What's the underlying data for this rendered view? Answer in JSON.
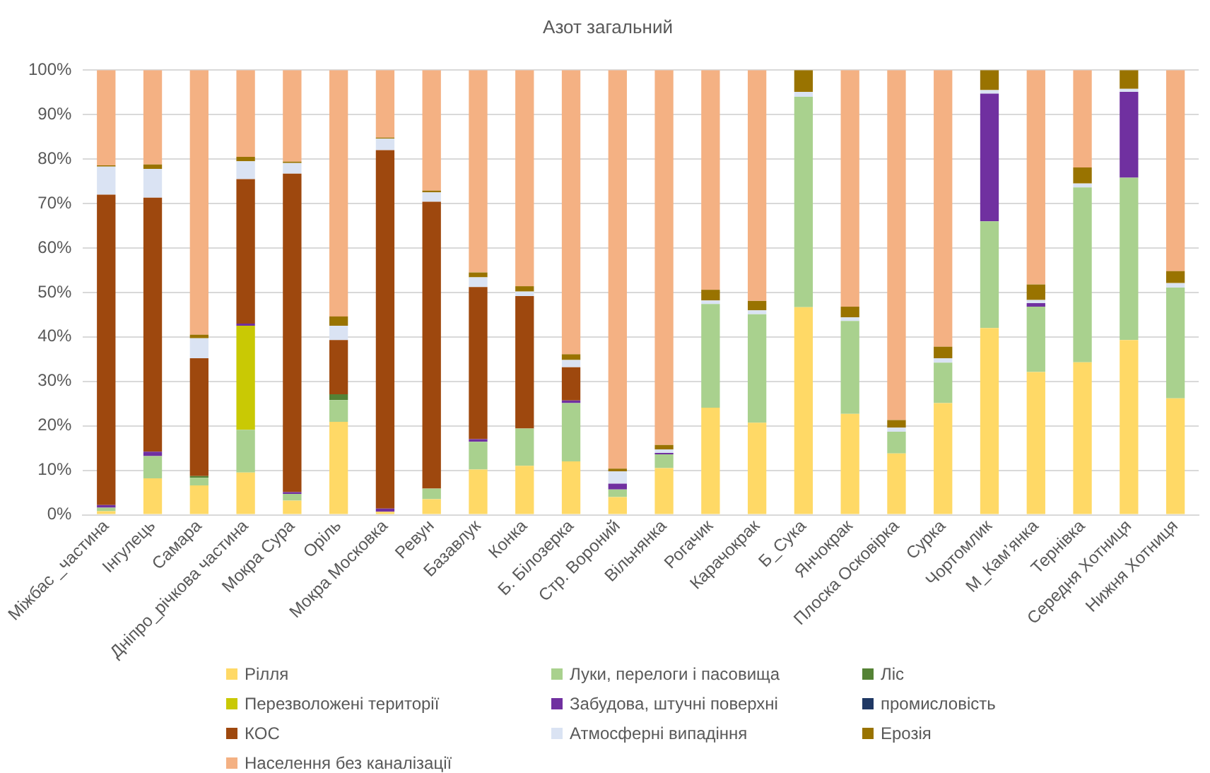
{
  "chart_data": {
    "type": "bar",
    "title": "Азот загальний",
    "stacked": true,
    "grid": "y",
    "legend": "bottom",
    "categories": [
      "Міжбас _частина",
      "Інгулець",
      "Самара",
      "Дніпро_річкова частина",
      "Мокра Сура",
      "Оріль",
      "Мокра Московка",
      "Ревун",
      "Базавлук",
      "Конка",
      "Б. Білозерка",
      "Стр. Вороний",
      "Вільнянка",
      "Рогачик",
      "Карачокрак",
      "Б_Сука",
      "Янчокрак",
      "Плоска Осковірка",
      "Сурка",
      "Чортомлик",
      "М_Кам’янка",
      "Тернівка",
      "Середня Хотниця",
      "Нижня Хотниця"
    ],
    "ylim": [
      0,
      100
    ],
    "yticks": [
      {
        "value": 0,
        "label": "0%"
      },
      {
        "value": 10,
        "label": "10%"
      },
      {
        "value": 20,
        "label": "20%"
      },
      {
        "value": 30,
        "label": "30%"
      },
      {
        "value": 40,
        "label": "40%"
      },
      {
        "value": 50,
        "label": "50%"
      },
      {
        "value": 60,
        "label": "60%"
      },
      {
        "value": 70,
        "label": "70%"
      },
      {
        "value": 80,
        "label": "80%"
      },
      {
        "value": 90,
        "label": "90%"
      },
      {
        "value": 100,
        "label": "100%"
      }
    ],
    "series": [
      {
        "name": "Рілля",
        "color": "#ffd966",
        "values": [
          0.8,
          8.2,
          6.6,
          9.5,
          3.2,
          20.9,
          0.7,
          3.5,
          10.2,
          11.0,
          12.0,
          4.0,
          10.5,
          24.1,
          20.7,
          46.7,
          22.7,
          13.8,
          25.1,
          42.0,
          32.1,
          34.3,
          39.3,
          26.2
        ]
      },
      {
        "name": "Луки, перелоги і пасовища",
        "color": "#a9d18e",
        "values": [
          0.8,
          5.0,
          1.7,
          9.6,
          1.5,
          4.9,
          0,
          2.4,
          6.2,
          8.4,
          13.1,
          1.7,
          3.1,
          23.3,
          24.4,
          47.3,
          20.9,
          4.9,
          9.1,
          24.0,
          14.7,
          39.3,
          36.5,
          24.9
        ]
      },
      {
        "name": "Ліс",
        "color": "#548235",
        "values": [
          0,
          0,
          0.4,
          0,
          0,
          1.3,
          0,
          0,
          0,
          0,
          0,
          0,
          0,
          0,
          0,
          0,
          0,
          0,
          0,
          0,
          0,
          0,
          0,
          0
        ]
      },
      {
        "name": "Перезволожені території",
        "color": "#c9c904",
        "values": [
          0,
          0,
          0,
          23.4,
          0,
          0,
          0,
          0,
          0,
          0,
          0,
          0,
          0,
          0,
          0,
          0,
          0,
          0,
          0,
          0,
          0,
          0,
          0,
          0
        ]
      },
      {
        "name": "Забудова, штучні поверхні",
        "color": "#7030a0",
        "values": [
          0.6,
          1.0,
          0,
          0.5,
          0.4,
          0,
          0.7,
          0,
          0.6,
          0,
          0.6,
          1.3,
          0.3,
          0,
          0,
          0,
          0,
          0,
          0,
          28.7,
          0.8,
          0,
          19.3,
          0
        ]
      },
      {
        "name": "промисловість",
        "color": "#1f3864",
        "values": [
          0,
          0,
          0,
          0,
          0,
          0,
          0,
          0,
          0,
          0,
          0,
          0,
          0,
          0,
          0,
          0,
          0,
          0,
          0,
          0,
          0,
          0,
          0,
          0
        ]
      },
      {
        "name": "КОС",
        "color": "#9e480e",
        "values": [
          69.8,
          57.1,
          26.5,
          32.5,
          71.6,
          12.2,
          80.6,
          64.5,
          34.2,
          29.8,
          7.5,
          0,
          0,
          0,
          0,
          0,
          0,
          0,
          0,
          0,
          0,
          0,
          0,
          0
        ]
      },
      {
        "name": "Атмосферні випадіння",
        "color": "#dae3f3",
        "values": [
          6.3,
          6.5,
          4.5,
          4.0,
          2.4,
          3.2,
          2.6,
          2.1,
          2.2,
          1.0,
          1.6,
          2.8,
          0.8,
          0.8,
          0.9,
          1.1,
          0.8,
          0.9,
          1.0,
          0.8,
          0.7,
          0.9,
          0.7,
          1.0
        ]
      },
      {
        "name": "Ерозія",
        "color": "#997300",
        "values": [
          0.3,
          1.0,
          0.8,
          1.0,
          0.3,
          2.1,
          0.2,
          0.4,
          1.1,
          1.2,
          1.3,
          0.6,
          1.0,
          2.4,
          2.1,
          4.9,
          2.4,
          1.7,
          2.6,
          4.5,
          3.5,
          3.6,
          4.2,
          2.7
        ]
      },
      {
        "name": "Населення без каналізації",
        "color": "#f4b183",
        "values": [
          21.4,
          21.2,
          59.5,
          19.5,
          20.6,
          55.4,
          15.2,
          27.1,
          45.5,
          48.6,
          63.9,
          89.6,
          84.3,
          49.4,
          51.9,
          0,
          53.2,
          78.7,
          62.2,
          0,
          48.2,
          21.9,
          0,
          45.2
        ]
      }
    ]
  }
}
